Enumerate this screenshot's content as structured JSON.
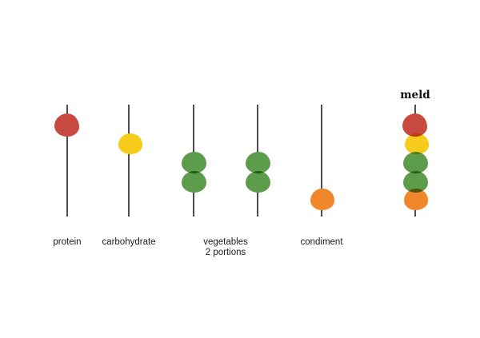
{
  "diagram": {
    "description": "meal composition skewers",
    "background": "#ffffff"
  },
  "colors": {
    "red": "#c8493f",
    "yellow": "#f5cc1b",
    "green": "#5c9c4a",
    "orange": "#f0882b",
    "rod": "#4e4e4e",
    "label_text": "#1c1c1c"
  },
  "skewers": [
    {
      "name": "protein",
      "beads": [
        {
          "color": "red",
          "slot": 0
        }
      ]
    },
    {
      "name": "carbohydrate",
      "beads": [
        {
          "color": "yellow",
          "slot": 1
        }
      ]
    },
    {
      "name": "vegetables-a",
      "beads": [
        {
          "color": "green",
          "slot": 2
        },
        {
          "color": "green",
          "slot": 3
        }
      ]
    },
    {
      "name": "vegetables-b",
      "beads": [
        {
          "color": "green",
          "slot": 2
        },
        {
          "color": "green",
          "slot": 3
        }
      ]
    },
    {
      "name": "condiment",
      "beads": [
        {
          "color": "orange",
          "slot": 4
        }
      ]
    },
    {
      "name": "meld",
      "beads": [
        {
          "color": "red",
          "slot": 0
        },
        {
          "color": "yellow",
          "slot": 1
        },
        {
          "color": "green",
          "slot": 2
        },
        {
          "color": "green",
          "slot": 3
        },
        {
          "color": "orange",
          "slot": 4
        }
      ]
    }
  ],
  "labels": [
    {
      "text": "protein",
      "skewers": [
        0
      ],
      "position": "below",
      "style": "plain"
    },
    {
      "text": "carbohydrate",
      "skewers": [
        1
      ],
      "position": "below",
      "style": "plain"
    },
    {
      "text": "vegetables\n2 portions",
      "skewers": [
        2,
        3
      ],
      "position": "below",
      "style": "plain"
    },
    {
      "text": "condiment",
      "skewers": [
        4
      ],
      "position": "below",
      "style": "plain"
    },
    {
      "text": "meld",
      "skewers": [
        5
      ],
      "position": "above",
      "style": "title"
    }
  ]
}
